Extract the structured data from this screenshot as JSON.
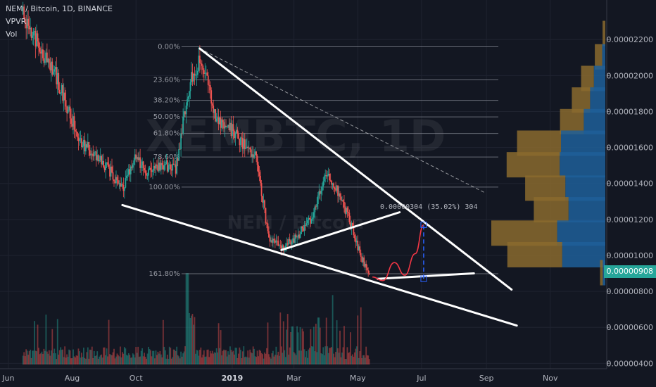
{
  "header": {
    "symbol_line": "NEM / Bitcoin, 1D, BINANCE",
    "indicator_vpvr": "VPVR",
    "indicator_vol": "Vol"
  },
  "watermark": {
    "symbol": "XEMBTC, 1D",
    "name": "NEM / Bitcoin"
  },
  "colors": {
    "background": "#131722",
    "candle_up": "#26a69a",
    "candle_down": "#ef5350",
    "trendline": "#ffffff",
    "projection": "#f23645",
    "measure": "#2962ff",
    "vpvr_up": "#1e5f99",
    "vpvr_down": "#8a6a2e",
    "price_badge": "#26a69a"
  },
  "fib": {
    "levels": [
      "0.00%",
      "23.60%",
      "38.20%",
      "50.00%",
      "61.80%",
      "78.60%",
      "100.00%",
      "161.80%"
    ],
    "ratios": [
      0,
      0.236,
      0.382,
      0.5,
      0.618,
      0.786,
      1.0,
      1.618
    ]
  },
  "measurement_label": "0.00000304 (35.02%) 304",
  "current_price": "0.00000908",
  "chart_data": {
    "type": "candlestick",
    "x_tick_labels": [
      "Jun",
      "Aug",
      "Oct",
      "2019",
      "Mar",
      "May",
      "Jul",
      "Sep",
      "Nov"
    ],
    "y_tick_values": [
      4e-06,
      6e-06,
      8e-06,
      1e-05,
      1.2e-05,
      1.4e-05,
      1.6e-05,
      1.8e-05,
      2e-05,
      2.2e-05
    ],
    "y_tick_labels": [
      "0.00000400",
      "0.00000600",
      "0.00000800",
      "0.00001000",
      "0.00001200",
      "0.00001400",
      "0.00001600",
      "0.00001800",
      "0.00002000",
      "0.00002200"
    ],
    "ylim": [
      3.7e-06,
      2.42e-05
    ],
    "xlim": [
      "2018-05-24",
      "2019-12-25"
    ],
    "price_path": [
      [
        "2018-06-15",
        2.34e-05
      ],
      [
        "2018-07-01",
        2.15e-05
      ],
      [
        "2018-07-15",
        2.02e-05
      ],
      [
        "2018-07-28",
        1.81e-05
      ],
      [
        "2018-08-10",
        1.63e-05
      ],
      [
        "2018-08-25",
        1.54e-05
      ],
      [
        "2018-09-08",
        1.46e-05
      ],
      [
        "2018-09-18",
        1.37e-05
      ],
      [
        "2018-09-30",
        1.55e-05
      ],
      [
        "2018-10-12",
        1.46e-05
      ],
      [
        "2018-10-25",
        1.51e-05
      ],
      [
        "2018-11-08",
        1.48e-05
      ],
      [
        "2018-11-22",
        1.99e-05
      ],
      [
        "2018-12-03",
        2.1e-05
      ],
      [
        "2018-12-16",
        1.76e-05
      ],
      [
        "2018-12-30",
        1.71e-05
      ],
      [
        "2019-01-12",
        1.61e-05
      ],
      [
        "2019-01-24",
        1.55e-05
      ],
      [
        "2019-02-05",
        1.09e-05
      ],
      [
        "2019-02-18",
        1.05e-05
      ],
      [
        "2019-03-03",
        1.1e-05
      ],
      [
        "2019-03-18",
        1.21e-05
      ],
      [
        "2019-04-01",
        1.46e-05
      ],
      [
        "2019-04-10",
        1.39e-05
      ],
      [
        "2019-04-22",
        1.21e-05
      ],
      [
        "2019-05-03",
        1.01e-05
      ],
      [
        "2019-05-12",
        8.9e-06
      ]
    ],
    "fib_anchor_high": 2.16e-05,
    "fib_anchor_low": 1.38e-05,
    "projection_path": [
      [
        "2019-05-15",
        8.8e-06
      ],
      [
        "2019-05-25",
        8.6e-06
      ],
      [
        "2019-06-05",
        9.6e-06
      ],
      [
        "2019-06-15",
        8.9e-06
      ],
      [
        "2019-06-25",
        1.01e-05
      ],
      [
        "2019-07-03",
        1.17e-05
      ]
    ],
    "trendlines": [
      {
        "name": "falling-wedge-upper",
        "from": [
          "2018-12-01",
          2.15e-05
        ],
        "to": [
          "2019-09-25",
          8.1e-06
        ]
      },
      {
        "name": "falling-wedge-lower",
        "from": [
          "2018-09-18",
          1.28e-05
        ],
        "to": [
          "2019-09-30",
          6.1e-06
        ]
      },
      {
        "name": "upper-extension-dashed",
        "from": [
          "2018-12-01",
          2.15e-05
        ],
        "to": [
          "2019-08-30",
          1.35e-05
        ]
      },
      {
        "name": "inner-rising-line-1",
        "from": [
          "2019-02-17",
          1.03e-05
        ],
        "to": [
          "2019-06-10",
          1.24e-05
        ]
      },
      {
        "name": "inner-rising-line-2",
        "from": [
          "2019-05-20",
          8.7e-06
        ],
        "to": [
          "2019-08-20",
          9e-06
        ]
      }
    ],
    "measure_from": [
      "2019-07-03",
      8.7e-06
    ],
    "measure_to": [
      "2019-07-03",
      1.17e-05
    ],
    "volume_scale_max": 100,
    "vpvr": [
      {
        "price": 2.23e-05,
        "up": 0,
        "down": 3
      },
      {
        "price": 2.1e-05,
        "up": 5,
        "down": 8
      },
      {
        "price": 1.98e-05,
        "up": 18,
        "down": 14
      },
      {
        "price": 1.86e-05,
        "up": 24,
        "down": 20
      },
      {
        "price": 1.74e-05,
        "up": 34,
        "down": 26
      },
      {
        "price": 1.62e-05,
        "up": 70,
        "down": 48
      },
      {
        "price": 1.5e-05,
        "up": 72,
        "down": 58
      },
      {
        "price": 1.37e-05,
        "up": 63,
        "down": 44
      },
      {
        "price": 1.25e-05,
        "up": 58,
        "down": 38
      },
      {
        "price": 1.12e-05,
        "up": 76,
        "down": 72
      },
      {
        "price": 1e-05,
        "up": 68,
        "down": 60
      },
      {
        "price": 9e-06,
        "up": 4,
        "down": 3
      }
    ]
  }
}
